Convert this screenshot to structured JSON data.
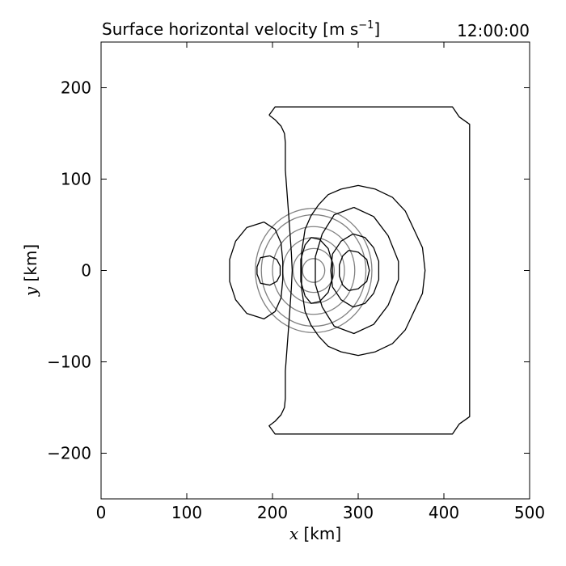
{
  "chart_data": {
    "type": "contour",
    "title": "Surface horizontal velocity [m s",
    "title_unit_exponent": "−1",
    "title_close": "]",
    "time_label": "12:00:00",
    "xlabel_var": "x",
    "xlabel_unit": " [km]",
    "ylabel_var": "y",
    "ylabel_unit": " [km]",
    "xlim": [
      0,
      500
    ],
    "ylim": [
      -250,
      250
    ],
    "xticks": [
      0,
      100,
      200,
      300,
      400,
      500
    ],
    "yticks": [
      -200,
      -100,
      0,
      100,
      200
    ],
    "xtick_labels": [
      "0",
      "100",
      "200",
      "300",
      "400",
      "500"
    ],
    "ytick_labels": [
      "−200",
      "−100",
      "0",
      "100",
      "200"
    ],
    "grid": false,
    "colors": {
      "black_contours": "#000000",
      "gray_circles": "#808080"
    },
    "gray_circles": {
      "center": [
        248,
        0
      ],
      "radii": [
        13,
        24,
        36,
        48,
        61,
        68
      ]
    },
    "black_contours": [
      {
        "name_id": "outer-domain",
        "points": [
          [
            196,
            170
          ],
          [
            203,
            179
          ],
          [
            400,
            179
          ],
          [
            410,
            179
          ],
          [
            418,
            168
          ],
          [
            430,
            160
          ],
          [
            430,
            -160
          ],
          [
            418,
            -168
          ],
          [
            410,
            -179
          ],
          [
            203,
            -179
          ],
          [
            196,
            -170
          ],
          [
            203,
            -165
          ],
          [
            210,
            -158
          ],
          [
            214,
            -150
          ],
          [
            215,
            -140
          ],
          [
            215,
            -110
          ],
          [
            219,
            -60
          ],
          [
            222,
            -20
          ],
          [
            223,
            0
          ],
          [
            222,
            20
          ],
          [
            219,
            60
          ],
          [
            215,
            110
          ],
          [
            215,
            140
          ],
          [
            214,
            150
          ],
          [
            210,
            158
          ],
          [
            203,
            165
          ],
          [
            196,
            170
          ]
        ]
      },
      {
        "name_id": "left-outer-lobe",
        "points": [
          [
            190,
            53
          ],
          [
            170,
            47
          ],
          [
            157,
            32
          ],
          [
            150,
            12
          ],
          [
            150,
            -12
          ],
          [
            157,
            -32
          ],
          [
            170,
            -47
          ],
          [
            190,
            -53
          ],
          [
            203,
            -45
          ],
          [
            210,
            -30
          ],
          [
            212,
            -10
          ],
          [
            212,
            10
          ],
          [
            210,
            30
          ],
          [
            203,
            45
          ],
          [
            190,
            53
          ]
        ]
      },
      {
        "name_id": "left-inner-lobe",
        "points": [
          [
            197,
            16
          ],
          [
            186,
            14
          ],
          [
            182,
            4
          ],
          [
            182,
            -4
          ],
          [
            186,
            -14
          ],
          [
            197,
            -16
          ],
          [
            205,
            -12
          ],
          [
            209,
            -5
          ],
          [
            209,
            5
          ],
          [
            205,
            12
          ],
          [
            197,
            16
          ]
        ]
      },
      {
        "name_id": "right-outer-lobe",
        "points": [
          [
            280,
            89
          ],
          [
            300,
            93
          ],
          [
            320,
            89
          ],
          [
            340,
            80
          ],
          [
            355,
            65
          ],
          [
            365,
            45
          ],
          [
            375,
            25
          ],
          [
            378,
            0
          ],
          [
            375,
            -25
          ],
          [
            365,
            -45
          ],
          [
            355,
            -65
          ],
          [
            340,
            -80
          ],
          [
            320,
            -89
          ],
          [
            300,
            -93
          ],
          [
            280,
            -89
          ],
          [
            265,
            -83
          ],
          [
            254,
            -72
          ],
          [
            245,
            -60
          ],
          [
            238,
            -45
          ],
          [
            234,
            -20
          ],
          [
            234,
            20
          ],
          [
            238,
            45
          ],
          [
            245,
            60
          ],
          [
            254,
            72
          ],
          [
            265,
            83
          ],
          [
            280,
            89
          ]
        ]
      },
      {
        "name_id": "right-mid-lobe",
        "points": [
          [
            295,
            69
          ],
          [
            318,
            59
          ],
          [
            335,
            38
          ],
          [
            347,
            10
          ],
          [
            347,
            -10
          ],
          [
            335,
            -38
          ],
          [
            318,
            -59
          ],
          [
            295,
            -69
          ],
          [
            272,
            -61
          ],
          [
            258,
            -40
          ],
          [
            250,
            -15
          ],
          [
            250,
            15
          ],
          [
            258,
            40
          ],
          [
            272,
            61
          ],
          [
            295,
            69
          ]
        ]
      },
      {
        "name_id": "right-inner-lobe",
        "points": [
          [
            294,
            40
          ],
          [
            308,
            36
          ],
          [
            318,
            25
          ],
          [
            324,
            10
          ],
          [
            324,
            -10
          ],
          [
            318,
            -25
          ],
          [
            308,
            -36
          ],
          [
            294,
            -40
          ],
          [
            280,
            -32
          ],
          [
            270,
            -18
          ],
          [
            268,
            0
          ],
          [
            270,
            18
          ],
          [
            280,
            32
          ],
          [
            294,
            40
          ]
        ]
      },
      {
        "name_id": "right-core-lobe",
        "points": [
          [
            289,
            22
          ],
          [
            300,
            20
          ],
          [
            310,
            12
          ],
          [
            313,
            0
          ],
          [
            310,
            -12
          ],
          [
            300,
            -20
          ],
          [
            289,
            -22
          ],
          [
            282,
            -16
          ],
          [
            278,
            -6
          ],
          [
            278,
            6
          ],
          [
            282,
            16
          ],
          [
            289,
            22
          ]
        ]
      },
      {
        "name_id": "center-lobe",
        "points": [
          [
            245,
            36
          ],
          [
            255,
            34
          ],
          [
            265,
            24
          ],
          [
            270,
            8
          ],
          [
            270,
            -8
          ],
          [
            265,
            -24
          ],
          [
            255,
            -34
          ],
          [
            245,
            -36
          ],
          [
            238,
            -28
          ],
          [
            233,
            -12
          ],
          [
            233,
            12
          ],
          [
            238,
            28
          ],
          [
            245,
            36
          ]
        ]
      }
    ]
  }
}
